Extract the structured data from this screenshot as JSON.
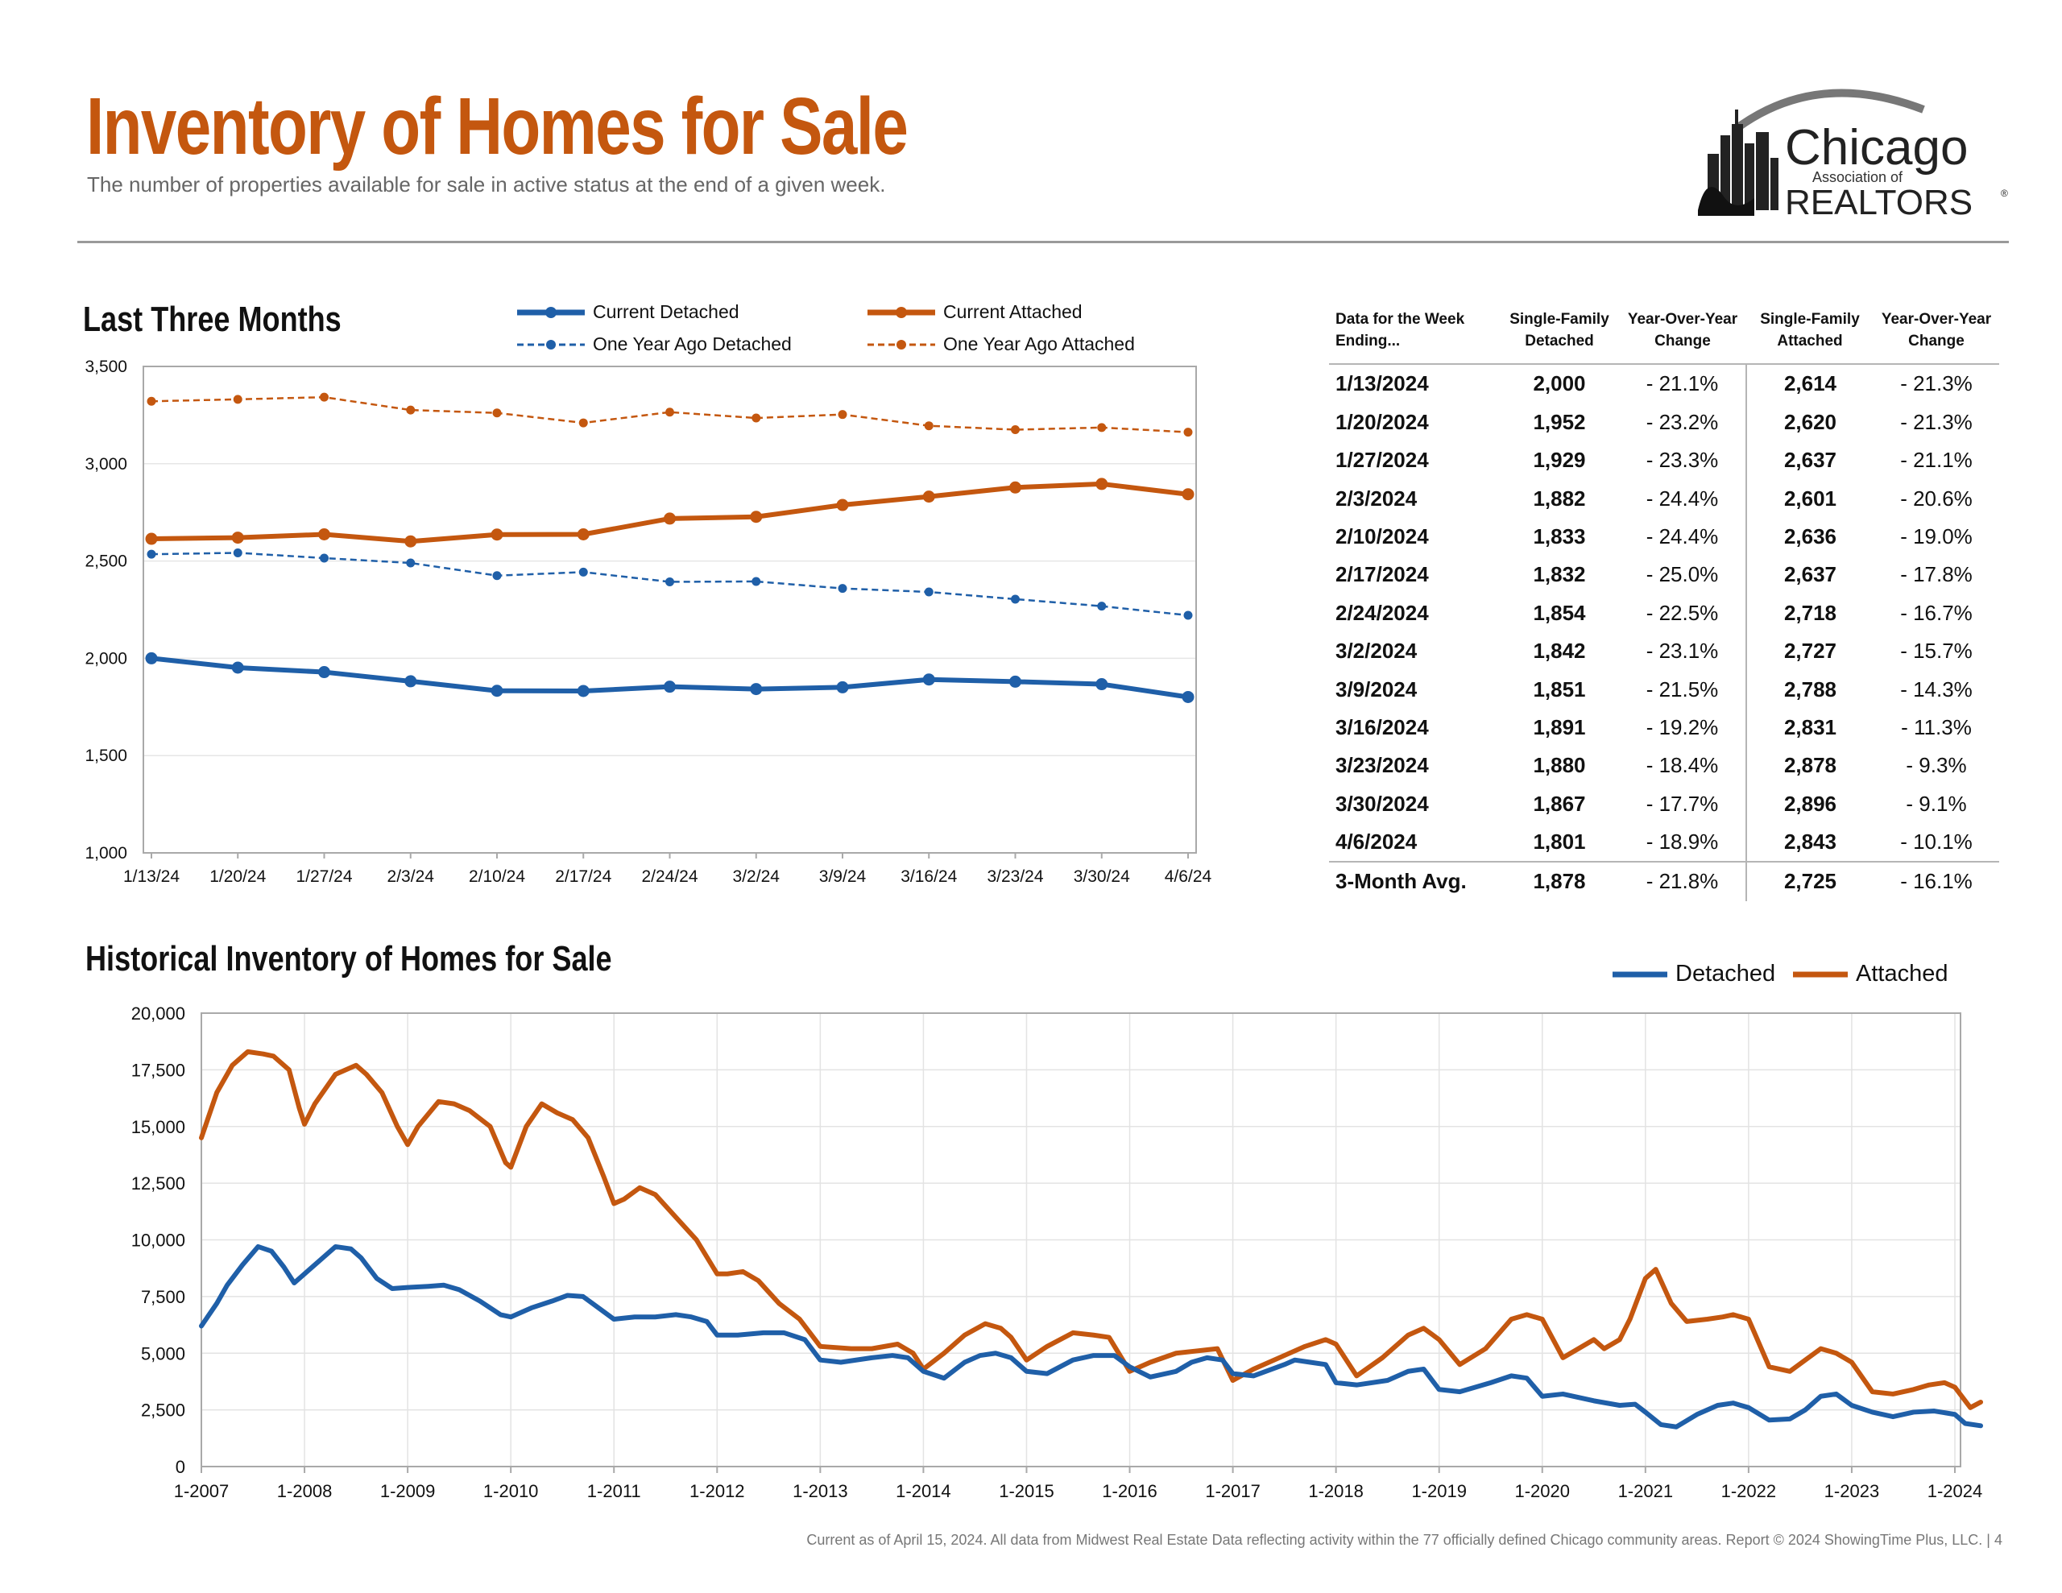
{
  "header": {
    "title": "Inventory of Homes for Sale",
    "subtitle": "The number of properties available for sale in active status at the end of a given week."
  },
  "logo": {
    "line1": "Chicago",
    "line2": "Association of",
    "line3": "REALTORS",
    "mark": "®"
  },
  "colors": {
    "accent": "#c4570f",
    "detached": "#1f5fa8",
    "attached": "#c4570f",
    "grid": "#e3e3e3"
  },
  "table": {
    "headers": [
      "Data for the Week Ending...",
      "Single-Family Detached",
      "Year-Over-Year Change",
      "Single-Family Attached",
      "Year-Over-Year Change"
    ],
    "rows": [
      [
        "1/13/2024",
        "2,000",
        "- 21.1%",
        "2,614",
        "- 21.3%"
      ],
      [
        "1/20/2024",
        "1,952",
        "- 23.2%",
        "2,620",
        "- 21.3%"
      ],
      [
        "1/27/2024",
        "1,929",
        "- 23.3%",
        "2,637",
        "- 21.1%"
      ],
      [
        "2/3/2024",
        "1,882",
        "- 24.4%",
        "2,601",
        "- 20.6%"
      ],
      [
        "2/10/2024",
        "1,833",
        "- 24.4%",
        "2,636",
        "- 19.0%"
      ],
      [
        "2/17/2024",
        "1,832",
        "- 25.0%",
        "2,637",
        "- 17.8%"
      ],
      [
        "2/24/2024",
        "1,854",
        "- 22.5%",
        "2,718",
        "- 16.7%"
      ],
      [
        "3/2/2024",
        "1,842",
        "- 23.1%",
        "2,727",
        "- 15.7%"
      ],
      [
        "3/9/2024",
        "1,851",
        "- 21.5%",
        "2,788",
        "- 14.3%"
      ],
      [
        "3/16/2024",
        "1,891",
        "- 19.2%",
        "2,831",
        "- 11.3%"
      ],
      [
        "3/23/2024",
        "1,880",
        "- 18.4%",
        "2,878",
        "- 9.3%"
      ],
      [
        "3/30/2024",
        "1,867",
        "- 17.7%",
        "2,896",
        "- 9.1%"
      ],
      [
        "4/6/2024",
        "1,801",
        "- 18.9%",
        "2,843",
        "- 10.1%"
      ]
    ],
    "avg": [
      "3-Month Avg.",
      "1,878",
      "- 21.8%",
      "2,725",
      "- 16.1%"
    ]
  },
  "footer": {
    "text": "Current as of April 15, 2024.  All data from Midwest Real Estate Data reflecting activity within the 77 officially defined Chicago community areas. Report © 2024 ShowingTime Plus, LLC.  |  4"
  },
  "chart_data": [
    {
      "type": "line",
      "title": "Last Three Months",
      "categories": [
        "1/13/24",
        "1/20/24",
        "1/27/24",
        "2/3/24",
        "2/10/24",
        "2/17/24",
        "2/24/24",
        "3/2/24",
        "3/9/24",
        "3/16/24",
        "3/23/24",
        "3/30/24",
        "4/6/24"
      ],
      "yticks": [
        "1,000",
        "1,500",
        "2,000",
        "2,500",
        "3,000",
        "3,500"
      ],
      "ylim": [
        1000,
        3500
      ],
      "legend_position": "top",
      "series": [
        {
          "name": "Current Detached",
          "color": "#1f5fa8",
          "style": "solid",
          "values": [
            2000,
            1952,
            1929,
            1882,
            1833,
            1832,
            1854,
            1842,
            1851,
            1891,
            1880,
            1867,
            1801
          ]
        },
        {
          "name": "Current Attached",
          "color": "#c4570f",
          "style": "solid",
          "values": [
            2614,
            2620,
            2637,
            2601,
            2636,
            2637,
            2718,
            2727,
            2788,
            2831,
            2878,
            2896,
            2843
          ]
        },
        {
          "name": "One Year Ago Detached",
          "color": "#1f5fa8",
          "style": "dashed",
          "values": [
            2535,
            2542,
            2515,
            2490,
            2425,
            2443,
            2393,
            2395,
            2359,
            2341,
            2304,
            2268,
            2221
          ]
        },
        {
          "name": "One Year Ago Attached",
          "color": "#c4570f",
          "style": "dashed",
          "values": [
            3321,
            3331,
            3342,
            3276,
            3261,
            3210,
            3265,
            3235,
            3253,
            3195,
            3175,
            3186,
            3162
          ]
        }
      ]
    },
    {
      "type": "line",
      "title": "Historical Inventory of Homes for Sale",
      "xticks": [
        "1-2007",
        "1-2008",
        "1-2009",
        "1-2010",
        "1-2011",
        "1-2012",
        "1-2013",
        "1-2014",
        "1-2015",
        "1-2016",
        "1-2017",
        "1-2018",
        "1-2019",
        "1-2020",
        "1-2021",
        "1-2022",
        "1-2023",
        "1-2024"
      ],
      "yticks": [
        "0",
        "2,500",
        "5,000",
        "7,500",
        "10,000",
        "12,500",
        "15,000",
        "17,500",
        "20,000"
      ],
      "ylim": [
        0,
        20000
      ],
      "x_unit": "years since January 2007",
      "legend_position": "top-right",
      "series": [
        {
          "name": "Detached",
          "color": "#1f5fa8",
          "x": [
            0,
            0.15,
            0.25,
            0.4,
            0.55,
            0.68,
            0.8,
            0.9,
            1.0,
            1.15,
            1.3,
            1.45,
            1.55,
            1.7,
            1.85,
            2.0,
            2.2,
            2.35,
            2.5,
            2.7,
            2.9,
            3.0,
            3.2,
            3.4,
            3.55,
            3.7,
            3.85,
            4.0,
            4.2,
            4.4,
            4.6,
            4.75,
            4.9,
            5.0,
            5.2,
            5.45,
            5.65,
            5.85,
            6.0,
            6.2,
            6.5,
            6.7,
            6.85,
            7.0,
            7.2,
            7.4,
            7.55,
            7.7,
            7.85,
            8.0,
            8.2,
            8.45,
            8.65,
            8.85,
            9.0,
            9.2,
            9.45,
            9.6,
            9.75,
            9.9,
            10.0,
            10.2,
            10.5,
            10.6,
            10.75,
            10.9,
            11.0,
            11.2,
            11.5,
            11.7,
            11.85,
            12.0,
            12.2,
            12.5,
            12.7,
            12.85,
            13.0,
            13.2,
            13.5,
            13.75,
            13.9,
            14.0,
            14.15,
            14.3,
            14.5,
            14.7,
            14.85,
            15.0,
            15.2,
            15.4,
            15.55,
            15.7,
            15.85,
            16.0,
            16.2,
            16.4,
            16.6,
            16.8,
            17.0,
            17.1,
            17.25
          ],
          "values": [
            6200,
            7200,
            8000,
            8900,
            9700,
            9500,
            8800,
            8100,
            8500,
            9100,
            9700,
            9600,
            9200,
            8300,
            7850,
            7900,
            7950,
            8000,
            7800,
            7300,
            6700,
            6600,
            7000,
            7300,
            7550,
            7500,
            7000,
            6500,
            6600,
            6600,
            6700,
            6600,
            6400,
            5800,
            5800,
            5900,
            5900,
            5600,
            4700,
            4600,
            4800,
            4900,
            4800,
            4200,
            3900,
            4600,
            4900,
            5000,
            4800,
            4200,
            4100,
            4700,
            4900,
            4900,
            4400,
            3950,
            4200,
            4600,
            4800,
            4700,
            4100,
            4000,
            4500,
            4700,
            4600,
            4500,
            3700,
            3600,
            3800,
            4200,
            4300,
            3400,
            3300,
            3700,
            4000,
            3900,
            3100,
            3200,
            2900,
            2700,
            2750,
            2400,
            1850,
            1750,
            2300,
            2700,
            2800,
            2600,
            2050,
            2100,
            2500,
            3100,
            3200,
            2700,
            2400,
            2200,
            2400,
            2450,
            2300,
            1900,
            1801
          ]
        },
        {
          "name": "Attached",
          "color": "#c4570f",
          "x": [
            0,
            0.15,
            0.3,
            0.45,
            0.6,
            0.7,
            0.85,
            0.95,
            1.0,
            1.1,
            1.3,
            1.5,
            1.6,
            1.75,
            1.9,
            2.0,
            2.1,
            2.3,
            2.45,
            2.6,
            2.8,
            2.95,
            3.0,
            3.15,
            3.3,
            3.45,
            3.6,
            3.75,
            3.9,
            4.0,
            4.1,
            4.25,
            4.4,
            4.6,
            4.8,
            5.0,
            5.1,
            5.25,
            5.4,
            5.6,
            5.8,
            6.0,
            6.3,
            6.5,
            6.75,
            6.9,
            7.0,
            7.2,
            7.4,
            7.6,
            7.75,
            7.85,
            8.0,
            8.2,
            8.45,
            8.65,
            8.8,
            9.0,
            9.2,
            9.45,
            9.65,
            9.85,
            10.0,
            10.2,
            10.5,
            10.7,
            10.9,
            11.0,
            11.2,
            11.45,
            11.7,
            11.85,
            12.0,
            12.2,
            12.45,
            12.7,
            12.85,
            13.0,
            13.2,
            13.35,
            13.5,
            13.6,
            13.75,
            13.85,
            14.0,
            14.1,
            14.25,
            14.4,
            14.6,
            14.75,
            14.85,
            15.0,
            15.2,
            15.4,
            15.55,
            15.7,
            15.85,
            16.0,
            16.2,
            16.4,
            16.6,
            16.75,
            16.9,
            17.0,
            17.15,
            17.25
          ],
          "values": [
            14500,
            16500,
            17700,
            18300,
            18200,
            18100,
            17500,
            15800,
            15100,
            16000,
            17300,
            17700,
            17300,
            16500,
            15000,
            14200,
            15000,
            16100,
            16000,
            15700,
            15000,
            13400,
            13200,
            15000,
            16000,
            15600,
            15300,
            14500,
            12800,
            11600,
            11800,
            12300,
            12000,
            11000,
            10000,
            8500,
            8500,
            8600,
            8200,
            7200,
            6500,
            5300,
            5200,
            5200,
            5400,
            5000,
            4300,
            5000,
            5800,
            6300,
            6100,
            5700,
            4700,
            5300,
            5900,
            5800,
            5700,
            4200,
            4600,
            5000,
            5100,
            5200,
            3800,
            4300,
            4900,
            5300,
            5600,
            5400,
            4000,
            4800,
            5800,
            6100,
            5600,
            4500,
            5200,
            6500,
            6700,
            6500,
            4800,
            5200,
            5600,
            5200,
            5600,
            6500,
            8300,
            8700,
            7200,
            6400,
            6500,
            6600,
            6700,
            6500,
            4400,
            4200,
            4700,
            5200,
            5000,
            4600,
            3300,
            3200,
            3400,
            3600,
            3700,
            3500,
            2600,
            2843
          ]
        }
      ]
    }
  ],
  "sections": {
    "three_months_title": "Last Three Months",
    "historical_title": "Historical Inventory of Homes for Sale"
  }
}
